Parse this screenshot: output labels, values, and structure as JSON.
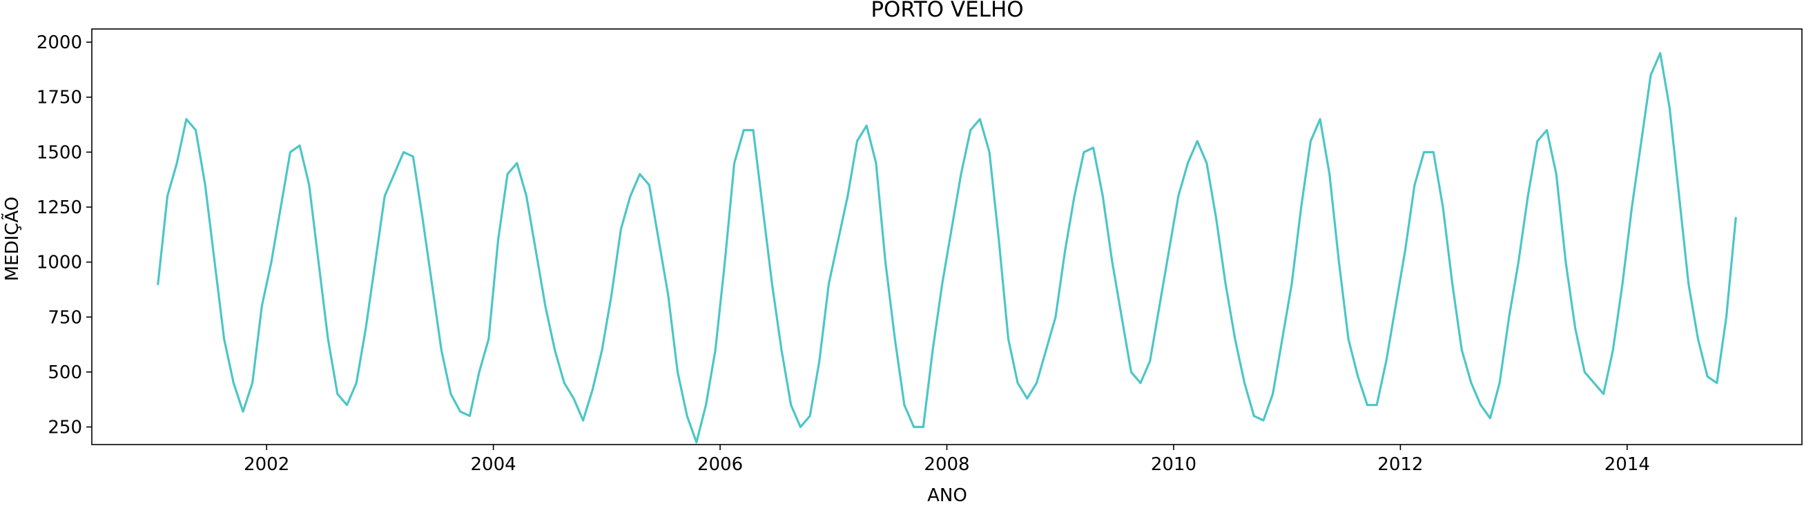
{
  "chart_data": {
    "type": "line",
    "title": "PORTO VELHO",
    "xlabel": "ANO",
    "ylabel": "MEDIÇÃO",
    "x_ticks": [
      "2002",
      "2004",
      "2006",
      "2008",
      "2010",
      "2012",
      "2014"
    ],
    "y_ticks": [
      "250",
      "500",
      "750",
      "1000",
      "1250",
      "1500",
      "1750",
      "2000"
    ],
    "xlim": [
      "2000-06",
      "2015-07"
    ],
    "ylim": [
      170,
      2060
    ],
    "grid": false,
    "legend": "none",
    "color": "#4cc6c6",
    "series": [
      {
        "x": [
          "2001-01",
          "2001-02",
          "2001-03",
          "2001-04",
          "2001-05",
          "2001-06",
          "2001-07",
          "2001-08",
          "2001-09",
          "2001-10",
          "2001-11",
          "2001-12",
          "2002-01",
          "2002-02",
          "2002-03",
          "2002-04",
          "2002-05",
          "2002-06",
          "2002-07",
          "2002-08",
          "2002-09",
          "2002-10",
          "2002-11",
          "2002-12",
          "2003-01",
          "2003-02",
          "2003-03",
          "2003-04",
          "2003-05",
          "2003-06",
          "2003-07",
          "2003-08",
          "2003-09",
          "2003-10",
          "2003-11",
          "2003-12",
          "2004-01",
          "2004-02",
          "2004-03",
          "2004-04",
          "2004-05",
          "2004-06",
          "2004-07",
          "2004-08",
          "2004-09",
          "2004-10",
          "2004-11",
          "2004-12",
          "2005-01",
          "2005-02",
          "2005-03",
          "2005-04",
          "2005-05",
          "2005-06",
          "2005-07",
          "2005-08",
          "2005-09",
          "2005-10",
          "2005-11",
          "2005-12",
          "2006-01",
          "2006-02",
          "2006-03",
          "2006-04",
          "2006-05",
          "2006-06",
          "2006-07",
          "2006-08",
          "2006-09",
          "2006-10",
          "2006-11",
          "2006-12",
          "2007-01",
          "2007-02",
          "2007-03",
          "2007-04",
          "2007-05",
          "2007-06",
          "2007-07",
          "2007-08",
          "2007-09",
          "2007-10",
          "2007-11",
          "2007-12",
          "2008-01",
          "2008-02",
          "2008-03",
          "2008-04",
          "2008-05",
          "2008-06",
          "2008-07",
          "2008-08",
          "2008-09",
          "2008-10",
          "2008-11",
          "2008-12",
          "2009-01",
          "2009-02",
          "2009-03",
          "2009-04",
          "2009-05",
          "2009-06",
          "2009-07",
          "2009-08",
          "2009-09",
          "2009-10",
          "2009-11",
          "2009-12",
          "2010-01",
          "2010-02",
          "2010-03",
          "2010-04",
          "2010-05",
          "2010-06",
          "2010-07",
          "2010-08",
          "2010-09",
          "2010-10",
          "2010-11",
          "2010-12",
          "2011-01",
          "2011-02",
          "2011-03",
          "2011-04",
          "2011-05",
          "2011-06",
          "2011-07",
          "2011-08",
          "2011-09",
          "2011-10",
          "2011-11",
          "2011-12",
          "2012-01",
          "2012-02",
          "2012-03",
          "2012-04",
          "2012-05",
          "2012-06",
          "2012-07",
          "2012-08",
          "2012-09",
          "2012-10",
          "2012-11",
          "2012-12",
          "2013-01",
          "2013-02",
          "2013-03",
          "2013-04",
          "2013-05",
          "2013-06",
          "2013-07",
          "2013-08",
          "2013-09",
          "2013-10",
          "2013-11",
          "2013-12",
          "2014-01",
          "2014-02",
          "2014-03",
          "2014-04",
          "2014-05",
          "2014-06",
          "2014-07",
          "2014-08",
          "2014-09",
          "2014-10",
          "2014-11",
          "2014-12"
        ],
        "values": [
          900,
          1300,
          1450,
          1650,
          1600,
          1350,
          1000,
          650,
          450,
          320,
          450,
          800,
          1000,
          1250,
          1500,
          1530,
          1350,
          1000,
          650,
          400,
          350,
          450,
          700,
          1000,
          1300,
          1400,
          1500,
          1480,
          1200,
          900,
          600,
          400,
          320,
          300,
          500,
          650,
          1100,
          1400,
          1450,
          1300,
          1050,
          800,
          600,
          450,
          380,
          280,
          420,
          600,
          850,
          1150,
          1300,
          1400,
          1350,
          1100,
          850,
          500,
          300,
          180,
          350,
          600,
          1000,
          1450,
          1600,
          1600,
          1250,
          900,
          600,
          350,
          250,
          300,
          550,
          900,
          1100,
          1300,
          1550,
          1620,
          1450,
          1000,
          650,
          350,
          250,
          250,
          600,
          900,
          1150,
          1400,
          1600,
          1650,
          1500,
          1100,
          650,
          450,
          380,
          450,
          600,
          750,
          1050,
          1300,
          1500,
          1520,
          1300,
          1000,
          750,
          500,
          450,
          550,
          800,
          1050,
          1300,
          1450,
          1550,
          1450,
          1200,
          900,
          650,
          450,
          300,
          280,
          400,
          650,
          900,
          1250,
          1550,
          1650,
          1400,
          1000,
          650,
          480,
          350,
          350,
          550,
          800,
          1050,
          1350,
          1500,
          1500,
          1250,
          900,
          600,
          450,
          350,
          290,
          450,
          750,
          1000,
          1300,
          1550,
          1600,
          1400,
          1000,
          700,
          500,
          450,
          400,
          600,
          900,
          1250,
          1550,
          1850,
          1950,
          1700,
          1300,
          900,
          650,
          480,
          450,
          750,
          1200
        ]
      }
    ]
  }
}
